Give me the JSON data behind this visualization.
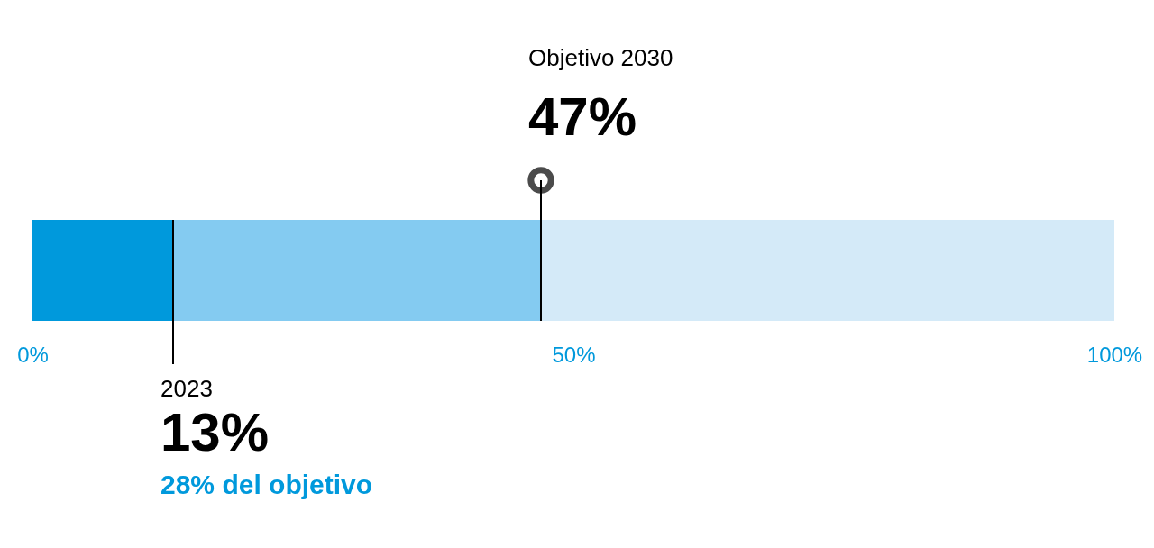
{
  "chart_data": {
    "type": "bar",
    "orientation": "horizontal",
    "stacked": true,
    "categories": [
      null
    ],
    "series": [
      {
        "color": "#0099dc",
        "values": [
          13
        ]
      },
      {
        "color": "#84cbf1",
        "values": [
          34
        ]
      },
      {
        "color": "#d4eaf8",
        "values": [
          53
        ]
      }
    ],
    "xlim": [
      0,
      100
    ],
    "xticks": [
      {
        "value": 0,
        "label": "0%"
      },
      {
        "value": 50,
        "label": "50%"
      },
      {
        "value": 100,
        "label": "100%"
      }
    ],
    "ref_lines": [
      {
        "axis": "x",
        "value": 13,
        "color": "#000000"
      },
      {
        "axis": "x",
        "value": 47,
        "color": "#000000"
      }
    ],
    "annotations": [
      "2023",
      "13%",
      "28% del objetivo",
      "Objetivo 2030",
      "47%"
    ]
  }
}
